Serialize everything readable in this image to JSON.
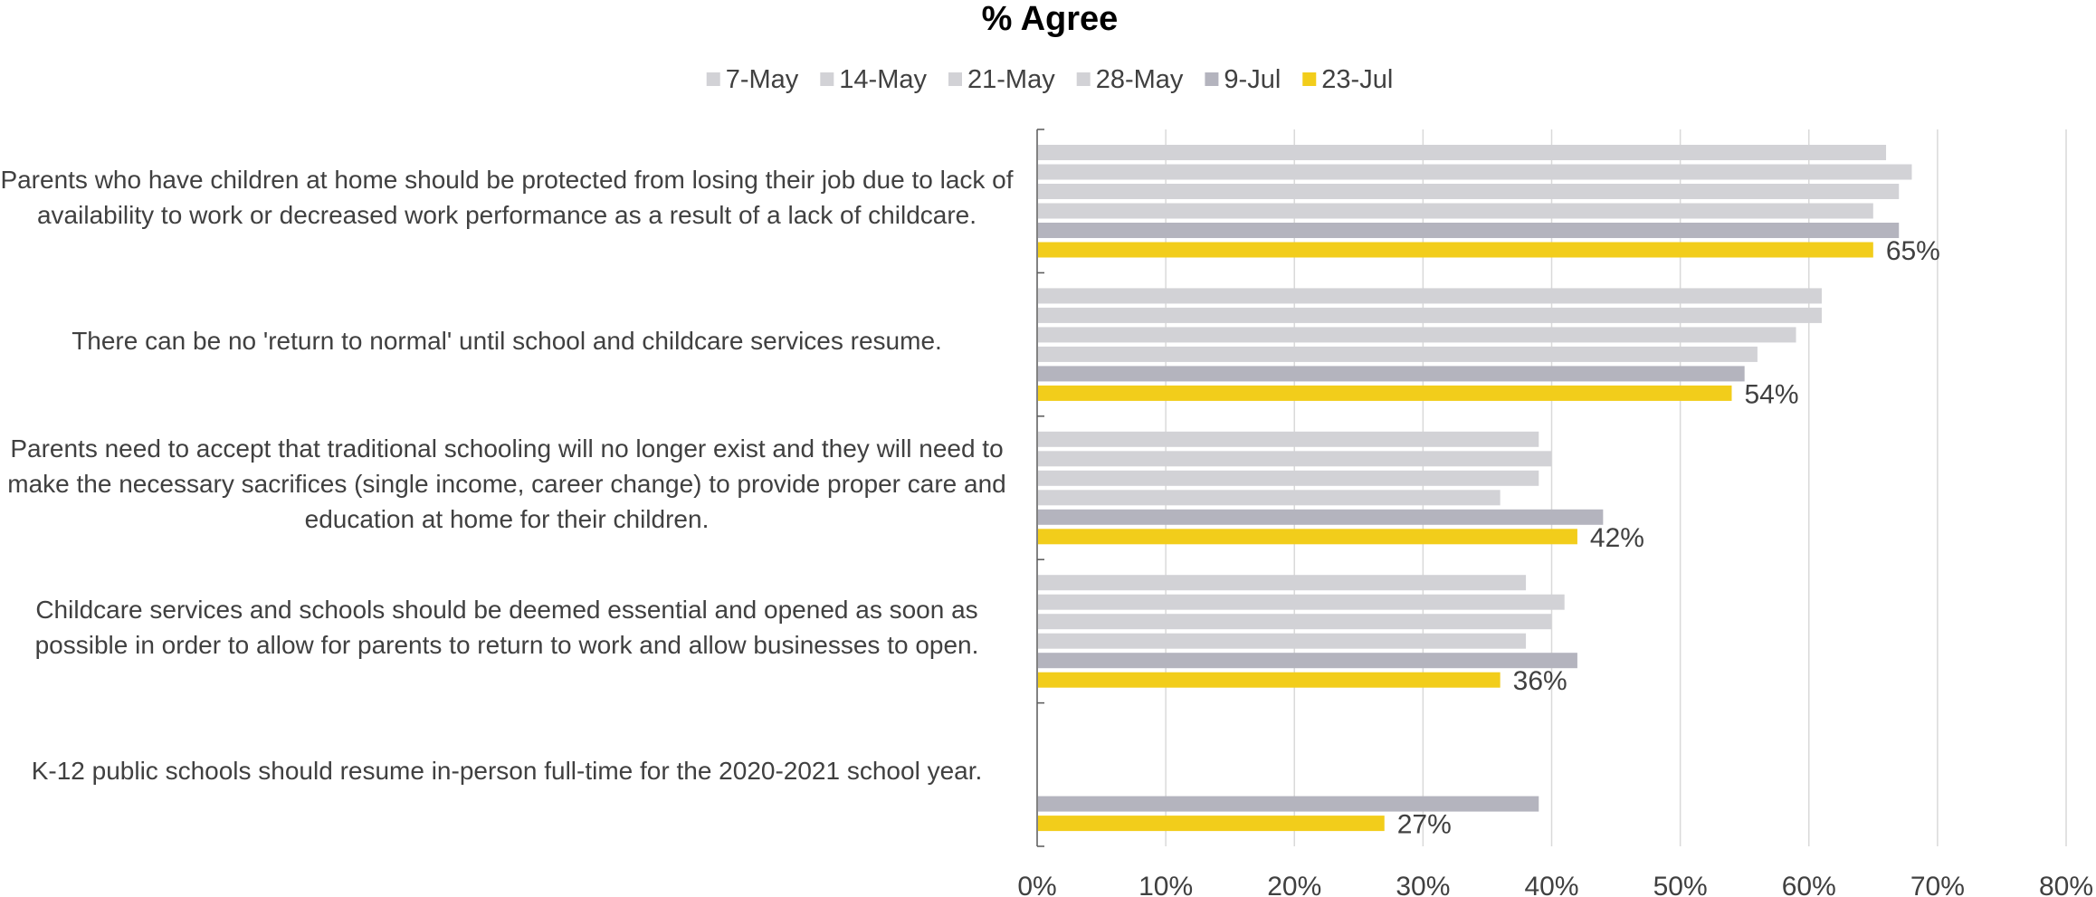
{
  "chart_data": {
    "type": "bar",
    "orientation": "horizontal",
    "title": "% Agree",
    "legend_position": "top",
    "grid": true,
    "xlim": [
      0,
      80
    ],
    "x_tick_labels": [
      "0%",
      "10%",
      "20%",
      "30%",
      "40%",
      "50%",
      "60%",
      "70%",
      "80%"
    ],
    "categories": [
      "Parents who have children at home should be protected from losing their job due to lack of availability to work or decreased work performance as a result of a lack of childcare.",
      "There can be no 'return to normal' until school and childcare services resume.",
      "Parents need to accept that traditional schooling will no longer exist and they will need to make the necessary sacrifices (single income, career change) to provide proper care and education at home for their children.",
      "Childcare services and schools should be deemed essential and opened as soon as possible in order to allow for parents to return to work and allow businesses to open.",
      "K-12 public schools should resume in-person full-time for the 2020-2021 school year."
    ],
    "series": [
      {
        "name": "7-May",
        "color": "#d2d2d6",
        "values": [
          66,
          61,
          39,
          38,
          null
        ]
      },
      {
        "name": "14-May",
        "color": "#d2d2d6",
        "values": [
          68,
          61,
          40,
          41,
          null
        ]
      },
      {
        "name": "21-May",
        "color": "#d2d2d6",
        "values": [
          67,
          59,
          39,
          40,
          null
        ]
      },
      {
        "name": "28-May",
        "color": "#d2d2d6",
        "values": [
          65,
          56,
          36,
          38,
          null
        ]
      },
      {
        "name": "9-Jul",
        "color": "#b4b4be",
        "values": [
          67,
          55,
          44,
          42,
          39
        ]
      },
      {
        "name": "23-Jul",
        "color": "#f2cd1b",
        "values": [
          65,
          54,
          42,
          36,
          27
        ]
      }
    ],
    "data_labels": {
      "series": "23-Jul",
      "labels": [
        "65%",
        "54%",
        "42%",
        "36%",
        "27%"
      ]
    }
  }
}
